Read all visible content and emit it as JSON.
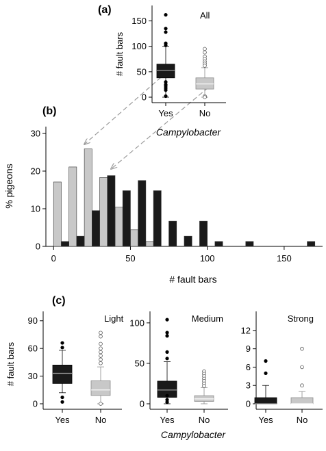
{
  "colors": {
    "campylobacter_yes": "#1a1a1a",
    "campylobacter_no": "#c8c8c8",
    "axis": "#000000",
    "median_yes": "#9a9a9a",
    "median_no": "#ffffff",
    "arrow": "#9a9a9a"
  },
  "chart_data": [
    {
      "id": "a",
      "panel_label": "(a)",
      "type": "box",
      "corner_label": "All",
      "xlabel": "Campylobacter",
      "ylabel": "# fault bars",
      "ylim": [
        0,
        175
      ],
      "yticks": [
        0,
        50,
        100,
        150
      ],
      "categories": [
        "Yes",
        "No"
      ],
      "boxes": [
        {
          "name": "Yes",
          "q1": 38,
          "median": 53,
          "q3": 65,
          "whisker_low": 0,
          "whisker_high": 100,
          "outliers": [
            162,
            135,
            128,
            106,
            102,
            30,
            25,
            22,
            18,
            14,
            2
          ]
        },
        {
          "name": "No",
          "q1": 16,
          "median": 26,
          "q3": 38,
          "whisker_low": 0,
          "whisker_high": 58,
          "outliers": [
            95,
            88,
            80,
            75,
            70,
            66,
            62,
            2,
            0
          ]
        }
      ]
    },
    {
      "id": "b",
      "panel_label": "(b)",
      "type": "bar",
      "xlabel": "# fault bars",
      "ylabel": "% pigeons",
      "xlim": [
        -5,
        175
      ],
      "ylim": [
        0,
        30
      ],
      "xticks": [
        0,
        50,
        100,
        150
      ],
      "yticks": [
        0,
        10,
        20,
        30
      ],
      "bin_width": 10,
      "series": [
        {
          "name": "No",
          "bins": [
            0,
            10,
            20,
            30,
            40,
            50,
            60
          ],
          "values": [
            17.1,
            21.1,
            25.9,
            18.3,
            10.4,
            4.4,
            1.3
          ]
        },
        {
          "name": "Yes",
          "bins": [
            0,
            10,
            20,
            30,
            40,
            50,
            60,
            70,
            80,
            90,
            100,
            120,
            140,
            160
          ],
          "values": [
            1.3,
            2.7,
            9.5,
            18.8,
            14.8,
            17.5,
            14.8,
            6.7,
            2.7,
            6.7,
            1.3,
            1.3,
            0,
            1.3
          ]
        }
      ]
    },
    {
      "id": "c1",
      "panel_label": "(c)",
      "type": "box",
      "corner_label": "Light",
      "xlabel": "",
      "ylabel": "# fault bars",
      "ylim": [
        -3,
        95
      ],
      "yticks": [
        0,
        30,
        60,
        90
      ],
      "categories": [
        "Yes",
        "No"
      ],
      "boxes": [
        {
          "name": "Yes",
          "q1": 22,
          "median": 33,
          "q3": 42,
          "whisker_low": 12,
          "whisker_high": 58,
          "outliers": [
            66,
            61,
            7,
            2
          ]
        },
        {
          "name": "No",
          "q1": 9,
          "median": 15,
          "q3": 25,
          "whisker_low": 0,
          "whisker_high": 40,
          "outliers": [
            77,
            73,
            65,
            60,
            56,
            52,
            48,
            44,
            0
          ]
        }
      ]
    },
    {
      "id": "c2",
      "type": "box",
      "corner_label": "Medium",
      "xlabel": "Campylobacter",
      "ylabel": "",
      "ylim": [
        -3,
        110
      ],
      "yticks": [
        0,
        50,
        100
      ],
      "categories": [
        "Yes",
        "No"
      ],
      "boxes": [
        {
          "name": "Yes",
          "q1": 8,
          "median": 17,
          "q3": 28,
          "whisker_low": 0,
          "whisker_high": 52,
          "outliers": [
            104,
            88,
            84,
            64,
            56,
            10,
            5,
            2
          ]
        },
        {
          "name": "No",
          "q1": 3,
          "median": 6,
          "q3": 10,
          "whisker_low": 0,
          "whisker_high": 20,
          "outliers": [
            40,
            37,
            34,
            31,
            28,
            25,
            22
          ]
        }
      ]
    },
    {
      "id": "c3",
      "type": "box",
      "corner_label": "Strong",
      "xlabel": "",
      "ylabel": "",
      "ylim": [
        -0.5,
        14
      ],
      "yticks": [
        0,
        3,
        6,
        9,
        12
      ],
      "categories": [
        "Yes",
        "No"
      ],
      "boxes": [
        {
          "name": "Yes",
          "q1": 0,
          "median": 0,
          "q3": 1,
          "whisker_low": 0,
          "whisker_high": 3,
          "outliers": [
            7,
            5
          ]
        },
        {
          "name": "No",
          "q1": 0,
          "median": 0,
          "q3": 1,
          "whisker_low": 0,
          "whisker_high": 2,
          "outliers": [
            9,
            6,
            3
          ]
        }
      ]
    }
  ]
}
